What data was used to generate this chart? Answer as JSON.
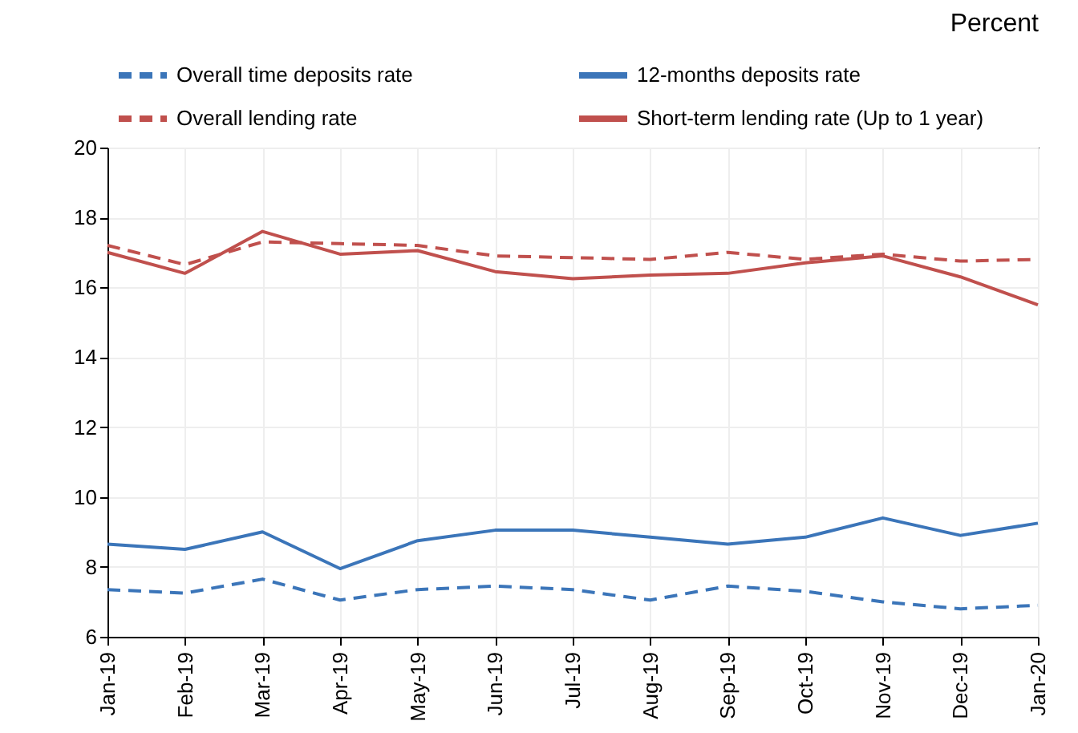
{
  "chart_data": {
    "type": "line",
    "ylabel": "Percent",
    "categories": [
      "Jan-19",
      "Feb-19",
      "Mar-19",
      "Apr-19",
      "May-19",
      "Jun-19",
      "Jul-19",
      "Aug-19",
      "Sep-19",
      "Oct-19",
      "Nov-19",
      "Dec-19",
      "Jan-20"
    ],
    "series": [
      {
        "name": "Overall time deposits rate",
        "color": "#3b75b9",
        "line_style": "dashed",
        "values": [
          7.35,
          7.25,
          7.65,
          7.05,
          7.35,
          7.45,
          7.35,
          7.05,
          7.45,
          7.3,
          7.0,
          6.8,
          6.9
        ]
      },
      {
        "name": "12-months deposits rate",
        "color": "#3b75b9",
        "line_style": "solid",
        "values": [
          8.65,
          8.5,
          9.0,
          7.95,
          8.75,
          9.05,
          9.05,
          8.85,
          8.65,
          8.85,
          9.4,
          8.9,
          9.25
        ]
      },
      {
        "name": "Overall lending rate",
        "color": "#c0504d",
        "line_style": "dashed",
        "values": [
          17.2,
          16.65,
          17.3,
          17.25,
          17.2,
          16.9,
          16.85,
          16.8,
          17.0,
          16.8,
          16.95,
          16.75,
          16.8
        ]
      },
      {
        "name": "Short-term lending  rate (Up to 1 year)",
        "color": "#c0504d",
        "line_style": "solid",
        "values": [
          17.0,
          16.4,
          17.6,
          16.95,
          17.05,
          16.45,
          16.25,
          16.35,
          16.4,
          16.7,
          16.9,
          16.3,
          15.5
        ]
      }
    ],
    "ylim": [
      6,
      20
    ],
    "yticks": [
      6,
      8,
      10,
      12,
      14,
      16,
      18,
      20
    ],
    "grid": true,
    "legend": "top",
    "marker": "none"
  }
}
